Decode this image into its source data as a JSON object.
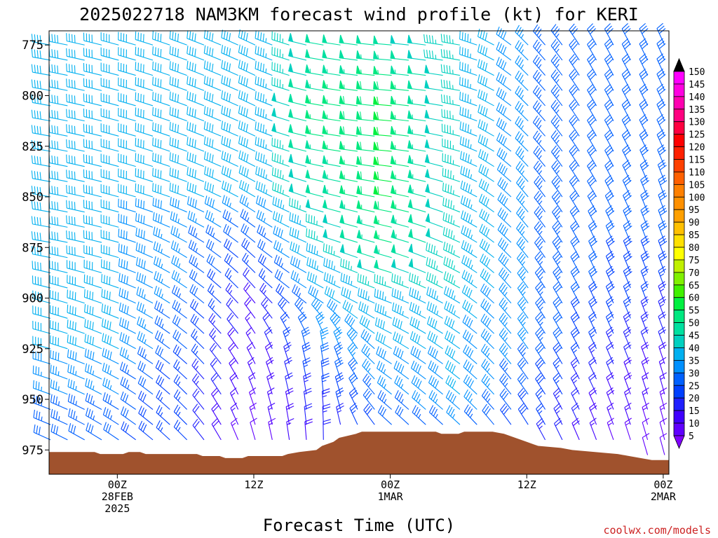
{
  "chart_data": {
    "type": "wind_barb_time_height",
    "title": "2025022718 NAM3KM forecast wind profile (kt) for KERI",
    "xlabel": "Forecast Time (UTC)",
    "ylabel": "",
    "units": "kt",
    "credit": "coolwx.com/models",
    "y_axis": {
      "scale": "pressure_mb",
      "range": [
        987,
        768
      ],
      "ticks": [
        775,
        800,
        825,
        850,
        875,
        900,
        925,
        950,
        975
      ]
    },
    "x_axis": {
      "range_hours": [
        -6,
        48.5
      ],
      "ticks": [
        {
          "hour": 0,
          "lines": [
            "00Z",
            "28FEB",
            "2025"
          ]
        },
        {
          "hour": 12,
          "lines": [
            "12Z"
          ]
        },
        {
          "hour": 24,
          "lines": [
            "00Z",
            "1MAR"
          ]
        },
        {
          "hour": 36,
          "lines": [
            "12Z"
          ]
        },
        {
          "hour": 48,
          "lines": [
            "00Z",
            "2MAR"
          ]
        }
      ]
    },
    "colorbar": {
      "levels": [
        5,
        10,
        15,
        20,
        25,
        30,
        35,
        40,
        45,
        50,
        55,
        60,
        65,
        70,
        75,
        80,
        85,
        90,
        95,
        100,
        105,
        110,
        115,
        120,
        125,
        130,
        135,
        140,
        145,
        150
      ],
      "colors": [
        "#8000ff",
        "#6000ff",
        "#4000ff",
        "#2020ff",
        "#0040ff",
        "#0060ff",
        "#0090ff",
        "#00b0f0",
        "#00d0c0",
        "#00e0a0",
        "#00e880",
        "#00f040",
        "#40f000",
        "#80f000",
        "#c0f000",
        "#ffff00",
        "#ffe000",
        "#ffc000",
        "#ffa000",
        "#ff9000",
        "#ff8000",
        "#ff6000",
        "#ff4000",
        "#ff2000",
        "#ff0000",
        "#ff0040",
        "#ff0080",
        "#ff00b0",
        "#ff00e0",
        "#ff00ff"
      ]
    },
    "terrain": {
      "color": "#a0522d",
      "surface_pressure": [
        {
          "h": -6,
          "p": 976
        },
        {
          "h": -2,
          "p": 976
        },
        {
          "h": -1.5,
          "p": 977
        },
        {
          "h": 0.5,
          "p": 977
        },
        {
          "h": 1,
          "p": 976
        },
        {
          "h": 2,
          "p": 976
        },
        {
          "h": 2.5,
          "p": 977
        },
        {
          "h": 7,
          "p": 977
        },
        {
          "h": 7.5,
          "p": 978
        },
        {
          "h": 9,
          "p": 978
        },
        {
          "h": 9.5,
          "p": 979
        },
        {
          "h": 11,
          "p": 979
        },
        {
          "h": 11.5,
          "p": 978
        },
        {
          "h": 14.5,
          "p": 978
        },
        {
          "h": 15,
          "p": 977
        },
        {
          "h": 16,
          "p": 976
        },
        {
          "h": 17.5,
          "p": 975
        },
        {
          "h": 18,
          "p": 973
        },
        {
          "h": 19,
          "p": 971
        },
        {
          "h": 19.5,
          "p": 969
        },
        {
          "h": 21,
          "p": 967
        },
        {
          "h": 21.5,
          "p": 966
        },
        {
          "h": 28,
          "p": 966
        },
        {
          "h": 28.5,
          "p": 967
        },
        {
          "h": 30,
          "p": 967
        },
        {
          "h": 30.5,
          "p": 966
        },
        {
          "h": 33,
          "p": 966
        },
        {
          "h": 34,
          "p": 967
        },
        {
          "h": 35,
          "p": 969
        },
        {
          "h": 36,
          "p": 971
        },
        {
          "h": 37,
          "p": 973
        },
        {
          "h": 39,
          "p": 974
        },
        {
          "h": 40,
          "p": 975
        },
        {
          "h": 42,
          "p": 976
        },
        {
          "h": 44,
          "p": 977
        },
        {
          "h": 45,
          "p": 978
        },
        {
          "h": 46,
          "p": 979
        },
        {
          "h": 47,
          "p": 980
        },
        {
          "h": 48.5,
          "p": 980
        }
      ]
    },
    "wind_barbs_sample": {
      "note": "wind speed (kt) and direction (deg) read from the barbs and colors",
      "hours": [
        -6,
        0,
        6,
        12,
        18,
        24,
        30,
        36,
        42,
        48
      ],
      "levels_mb": [
        775,
        800,
        825,
        850,
        875,
        900,
        925,
        950,
        975
      ],
      "speed_kt": [
        [
          40,
          40,
          40,
          40,
          50,
          50,
          45,
          35,
          30,
          30
        ],
        [
          40,
          40,
          40,
          40,
          55,
          60,
          45,
          35,
          30,
          30
        ],
        [
          40,
          40,
          40,
          40,
          55,
          60,
          45,
          35,
          30,
          30
        ],
        [
          40,
          40,
          40,
          40,
          50,
          60,
          45,
          35,
          30,
          30
        ],
        [
          40,
          40,
          35,
          30,
          45,
          55,
          45,
          35,
          30,
          30
        ],
        [
          40,
          40,
          35,
          20,
          40,
          45,
          45,
          35,
          30,
          25
        ],
        [
          40,
          40,
          30,
          15,
          35,
          40,
          40,
          35,
          25,
          20
        ],
        [
          35,
          35,
          25,
          15,
          25,
          35,
          40,
          30,
          20,
          15
        ],
        [
          30,
          30,
          25,
          10,
          20,
          25,
          30,
          25,
          15,
          10
        ]
      ],
      "dir_deg": [
        [
          280,
          285,
          290,
          295,
          280,
          275,
          280,
          315,
          330,
          335
        ],
        [
          280,
          285,
          290,
          295,
          280,
          275,
          280,
          315,
          330,
          335
        ],
        [
          280,
          285,
          290,
          295,
          280,
          275,
          285,
          315,
          330,
          335
        ],
        [
          280,
          285,
          290,
          300,
          285,
          280,
          290,
          320,
          330,
          340
        ],
        [
          280,
          285,
          300,
          310,
          290,
          285,
          295,
          320,
          335,
          340
        ],
        [
          285,
          290,
          305,
          320,
          300,
          290,
          300,
          325,
          335,
          340
        ],
        [
          285,
          295,
          310,
          330,
          350,
          300,
          305,
          325,
          335,
          340
        ],
        [
          290,
          300,
          315,
          340,
          355,
          310,
          310,
          325,
          335,
          345
        ],
        [
          295,
          305,
          315,
          345,
          360,
          315,
          315,
          330,
          340,
          345
        ]
      ]
    }
  }
}
